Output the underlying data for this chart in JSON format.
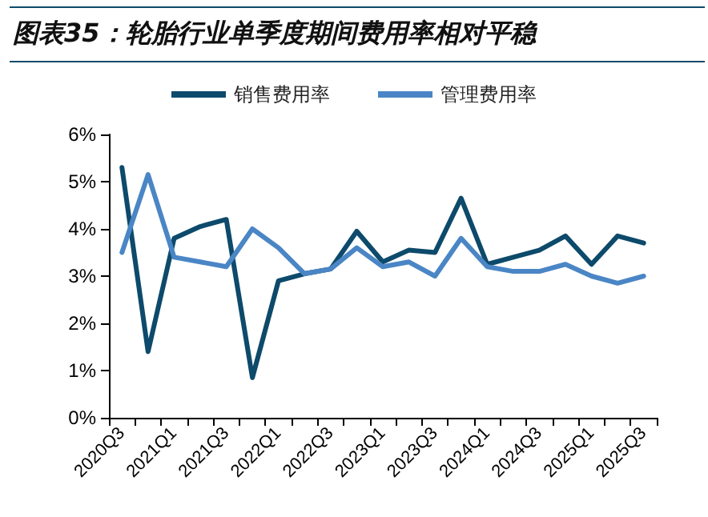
{
  "chart_data": {
    "type": "line",
    "title": "图表35：轮胎行业单季度期间费用率相对平稳",
    "categories": [
      "2020Q3",
      null,
      "2021Q1",
      null,
      "2021Q3",
      null,
      "2022Q1",
      null,
      "2022Q3",
      null,
      "2023Q1",
      null,
      "2023Q3",
      null,
      "2024Q1",
      null,
      "2024Q3",
      null,
      "2025Q1",
      null,
      "2025Q3"
    ],
    "series": [
      {
        "name": "销售费用率",
        "color": "#0d4a6b",
        "values": [
          5.3,
          1.4,
          3.8,
          4.05,
          4.2,
          0.85,
          2.9,
          3.05,
          3.15,
          3.95,
          3.3,
          3.55,
          3.5,
          4.65,
          3.25,
          3.4,
          3.55,
          3.85,
          3.25,
          3.85,
          3.7
        ]
      },
      {
        "name": "管理费用率",
        "color": "#4a86c5",
        "values": [
          3.5,
          5.15,
          3.4,
          3.3,
          3.2,
          4.0,
          3.6,
          3.05,
          3.15,
          3.6,
          3.2,
          3.3,
          3.0,
          3.8,
          3.2,
          3.1,
          3.1,
          3.25,
          3.0,
          2.85,
          3.0
        ]
      }
    ],
    "ylim": [
      0,
      6
    ],
    "yticks": [
      {
        "value": 0,
        "label": "0%"
      },
      {
        "value": 1,
        "label": "1%"
      },
      {
        "value": 2,
        "label": "2%"
      },
      {
        "value": 3,
        "label": "3%"
      },
      {
        "value": 4,
        "label": "4%"
      },
      {
        "value": 5,
        "label": "5%"
      },
      {
        "value": 6,
        "label": "6%"
      }
    ],
    "grid": false,
    "legend": "top",
    "marker": "none",
    "line_style": "solid"
  }
}
